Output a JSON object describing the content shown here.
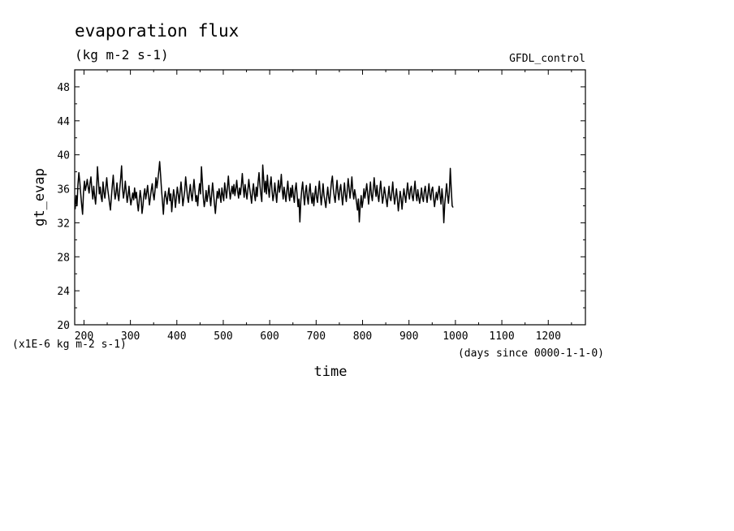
{
  "chart_data": {
    "type": "line",
    "title": "evaporation flux",
    "subtitle": "(kg m-2 s-1)",
    "dataset_label": "GFDL_control",
    "xlabel": "time",
    "x_units": "(days since 0000-1-1-0)",
    "ylabel": "gt_evap",
    "y_units": "(x1E-6 kg m-2 s-1)",
    "xlim": [
      180,
      1280
    ],
    "ylim": [
      20,
      50
    ],
    "xticks": [
      200,
      300,
      400,
      500,
      600,
      700,
      800,
      900,
      1000,
      1100,
      1200
    ],
    "xtick_labels": [
      "200",
      "300",
      "400",
      "500",
      "600",
      "700",
      "800",
      "900",
      "1000",
      "1100",
      "1200"
    ],
    "yticks": [
      20,
      24,
      28,
      32,
      36,
      40,
      44,
      48
    ],
    "ytick_labels": [
      "20",
      "24",
      "28",
      "32",
      "36",
      "40",
      "44",
      "48"
    ],
    "grid": false,
    "line_color": "#000000",
    "series": [
      {
        "x_start": 181,
        "x_step": 2,
        "values": [
          33.6,
          35.2,
          34.0,
          36.5,
          37.9,
          36.8,
          35.4,
          34.1,
          33.0,
          35.6,
          36.9,
          35.8,
          36.4,
          37.1,
          36.2,
          35.5,
          36.7,
          37.4,
          35.9,
          34.8,
          36.3,
          35.1,
          34.2,
          35.8,
          38.6,
          37.0,
          35.4,
          36.2,
          35.0,
          34.5,
          36.8,
          35.6,
          34.9,
          36.1,
          37.3,
          36.0,
          35.2,
          34.3,
          33.5,
          35.0,
          36.4,
          37.6,
          35.9,
          34.8,
          35.5,
          36.7,
          35.3,
          34.6,
          36.0,
          37.2,
          38.7,
          36.1,
          34.9,
          35.7,
          36.9,
          35.6,
          34.4,
          35.2,
          36.3,
          35.0,
          34.1,
          34.8,
          35.5,
          34.7,
          36.1,
          34.9,
          35.6,
          34.3,
          33.4,
          34.6,
          35.8,
          34.9,
          33.1,
          34.0,
          35.3,
          36.0,
          34.8,
          35.5,
          36.4,
          35.2,
          34.1,
          35.0,
          35.9,
          36.6,
          35.4,
          34.7,
          35.8,
          37.3,
          36.1,
          37.0,
          38.0,
          39.2,
          37.6,
          35.9,
          34.5,
          33.0,
          34.8,
          35.7,
          35.0,
          34.2,
          35.3,
          36.1,
          34.6,
          35.4,
          33.3,
          34.7,
          35.9,
          35.1,
          33.8,
          35.0,
          36.2,
          35.4,
          34.3,
          35.6,
          36.8,
          35.5,
          34.0,
          34.9,
          35.8,
          37.4,
          36.2,
          35.0,
          34.4,
          35.6,
          36.5,
          35.3,
          34.6,
          35.9,
          37.1,
          35.8,
          34.5,
          35.2,
          34.0,
          35.6,
          36.6,
          35.4,
          38.6,
          36.8,
          35.0,
          33.9,
          34.6,
          35.8,
          34.5,
          35.3,
          36.4,
          35.1,
          34.0,
          35.4,
          36.7,
          35.5,
          34.2,
          33.1,
          34.5,
          35.7,
          34.9,
          36.0,
          35.2,
          34.4,
          36.1,
          35.3,
          34.6,
          36.7,
          35.8,
          34.9,
          36.2,
          37.5,
          35.9,
          34.8,
          35.6,
          36.3,
          35.4,
          36.5,
          35.2,
          36.0,
          37.0,
          35.7,
          34.9,
          36.1,
          35.3,
          36.4,
          37.8,
          36.2,
          35.0,
          36.5,
          35.6,
          34.8,
          35.9,
          37.1,
          36.0,
          35.2,
          34.3,
          35.7,
          36.6,
          35.4,
          34.6,
          36.2,
          35.1,
          36.8,
          37.9,
          36.4,
          35.3,
          34.5,
          38.8,
          37.2,
          35.6,
          36.9,
          35.4,
          37.6,
          36.1,
          35.0,
          36.5,
          37.4,
          35.8,
          34.6,
          35.3,
          36.7,
          35.5,
          34.4,
          35.9,
          37.0,
          35.6,
          36.3,
          37.7,
          35.9,
          34.8,
          36.2,
          35.3,
          34.5,
          35.8,
          36.9,
          35.4,
          34.6,
          36.1,
          35.0,
          36.4,
          35.2,
          34.4,
          35.9,
          36.7,
          35.3,
          33.9,
          34.8,
          32.1,
          34.5,
          35.9,
          36.8,
          35.3,
          34.1,
          35.6,
          36.4,
          35.0,
          34.2,
          35.7,
          36.6,
          35.1,
          34.3,
          35.5,
          34.0,
          35.2,
          36.3,
          35.0,
          34.4,
          35.8,
          36.9,
          35.4,
          34.1,
          35.3,
          36.6,
          35.2,
          34.5,
          33.8,
          35.1,
          36.2,
          35.0,
          34.3,
          35.6,
          36.8,
          37.5,
          36.0,
          35.1,
          34.4,
          35.8,
          37.0,
          35.6,
          34.7,
          35.9,
          36.5,
          35.2,
          34.1,
          35.4,
          36.7,
          35.3,
          34.5,
          35.8,
          37.2,
          36.1,
          34.9,
          36.0,
          37.4,
          35.7,
          34.8,
          35.9,
          35.2,
          34.4,
          33.5,
          34.8,
          32.1,
          34.0,
          35.2,
          33.8,
          34.6,
          36.0,
          34.9,
          35.7,
          36.6,
          35.4,
          34.2,
          35.5,
          36.8,
          35.3,
          34.6,
          35.9,
          37.3,
          36.0,
          35.1,
          36.4,
          35.2,
          34.5,
          35.8,
          36.9,
          35.6,
          34.3,
          35.1,
          36.2,
          35.4,
          34.7,
          33.9,
          35.2,
          36.3,
          35.0,
          34.6,
          35.5,
          36.8,
          35.3,
          34.2,
          35.1,
          36.0,
          34.8,
          33.4,
          34.5,
          35.7,
          34.9,
          33.6,
          34.9,
          36.0,
          35.2,
          34.4,
          35.6,
          36.7,
          35.5,
          34.8,
          35.9,
          36.3,
          35.1,
          34.6,
          35.8,
          36.9,
          35.4,
          34.6,
          35.9,
          35.0,
          34.3,
          35.1,
          36.1,
          35.0,
          34.5,
          35.7,
          36.3,
          35.2,
          34.4,
          35.5,
          36.6,
          35.3,
          34.7,
          35.9,
          36.2,
          34.9,
          33.9,
          34.8,
          35.6,
          34.7,
          35.5,
          36.3,
          35.1,
          34.2,
          36.0,
          34.8,
          32.0,
          34.2,
          35.4,
          36.6,
          35.3,
          34.3,
          35.7,
          38.4,
          36.0,
          34.0,
          33.8
        ]
      }
    ]
  }
}
